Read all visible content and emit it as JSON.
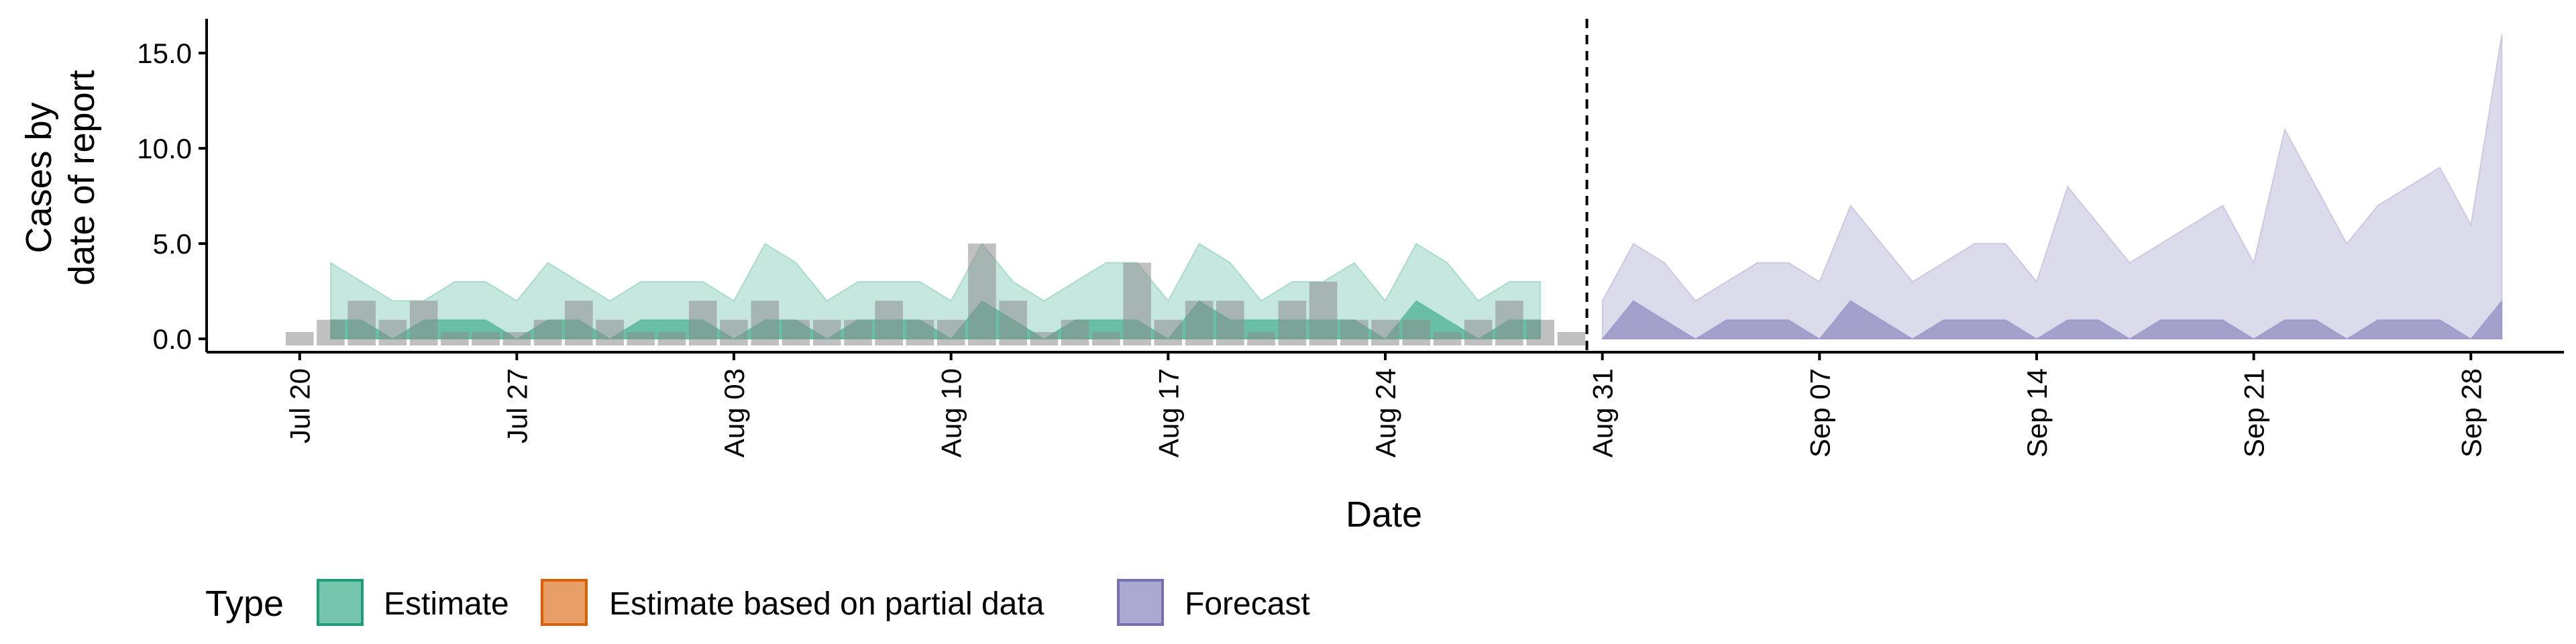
{
  "chart_data": {
    "type": "area",
    "xlabel": "Date",
    "ylabel_lines": [
      "Cases by",
      "date of report"
    ],
    "x_ticks": [
      "Jul 20",
      "Jul 27",
      "Aug 03",
      "Aug 10",
      "Aug 17",
      "Aug 24",
      "Aug 31",
      "Sep 07",
      "Sep 14",
      "Sep 21",
      "Sep 28"
    ],
    "y_ticks": [
      "0.0",
      "5.0",
      "10.0",
      "15.0"
    ],
    "ylim": [
      -0.7,
      16.8
    ],
    "xlim": [
      "2020-07-17",
      "2020-10-01"
    ],
    "forecast_date": "2020-08-30",
    "legend": {
      "title": "Type",
      "placement": "bottom",
      "items": [
        {
          "label": "Estimate",
          "fill": "#1b9e77",
          "stroke": "#1b9e77"
        },
        {
          "label": "Estimate based on partial data",
          "fill": "#d95f02",
          "stroke": "#d95f02"
        },
        {
          "label": "Forecast",
          "fill": "#7570b3",
          "stroke": "#7570b3"
        }
      ]
    },
    "colors": {
      "estimate": "#1b9e77",
      "forecast": "#7570b3",
      "reported_bars": "#8c8c8c"
    },
    "reported_cases": {
      "dates": [
        "2020-07-20",
        "2020-07-21",
        "2020-07-22",
        "2020-07-23",
        "2020-07-24",
        "2020-07-25",
        "2020-07-26",
        "2020-07-27",
        "2020-07-28",
        "2020-07-29",
        "2020-07-30",
        "2020-07-31",
        "2020-08-01",
        "2020-08-02",
        "2020-08-03",
        "2020-08-04",
        "2020-08-05",
        "2020-08-06",
        "2020-08-07",
        "2020-08-08",
        "2020-08-09",
        "2020-08-10",
        "2020-08-11",
        "2020-08-12",
        "2020-08-13",
        "2020-08-14",
        "2020-08-15",
        "2020-08-16",
        "2020-08-17",
        "2020-08-18",
        "2020-08-19",
        "2020-08-20",
        "2020-08-21",
        "2020-08-22",
        "2020-08-23",
        "2020-08-24",
        "2020-08-25",
        "2020-08-26",
        "2020-08-27",
        "2020-08-28",
        "2020-08-29",
        "2020-08-30"
      ],
      "values": [
        0,
        1,
        2,
        1,
        2,
        0,
        0,
        0,
        1,
        2,
        1,
        0,
        0,
        2,
        1,
        2,
        1,
        1,
        1,
        2,
        1,
        1,
        5,
        2,
        0,
        1,
        0,
        4,
        1,
        2,
        2,
        0,
        2,
        3,
        1,
        1,
        1,
        0,
        1,
        2,
        1,
        0
      ]
    },
    "estimate": {
      "dates": [
        "2020-07-21",
        "2020-07-22",
        "2020-07-23",
        "2020-07-24",
        "2020-07-25",
        "2020-07-26",
        "2020-07-27",
        "2020-07-28",
        "2020-07-29",
        "2020-07-30",
        "2020-07-31",
        "2020-08-01",
        "2020-08-02",
        "2020-08-03",
        "2020-08-04",
        "2020-08-05",
        "2020-08-06",
        "2020-08-07",
        "2020-08-08",
        "2020-08-09",
        "2020-08-10",
        "2020-08-11",
        "2020-08-12",
        "2020-08-13",
        "2020-08-14",
        "2020-08-15",
        "2020-08-16",
        "2020-08-17",
        "2020-08-18",
        "2020-08-19",
        "2020-08-20",
        "2020-08-21",
        "2020-08-22",
        "2020-08-23",
        "2020-08-24",
        "2020-08-25",
        "2020-08-26",
        "2020-08-27",
        "2020-08-28",
        "2020-08-29"
      ],
      "upper": [
        4,
        3,
        2,
        2,
        3,
        3,
        2,
        4,
        3,
        2,
        3,
        3,
        3,
        2,
        5,
        4,
        2,
        3,
        3,
        3,
        2,
        5,
        3,
        2,
        3,
        4,
        4,
        2,
        5,
        4,
        2,
        3,
        3,
        4,
        2,
        5,
        4,
        2,
        3,
        3
      ],
      "lower": [
        1,
        1,
        0,
        1,
        1,
        1,
        0,
        1,
        1,
        0,
        1,
        1,
        1,
        0,
        1,
        1,
        0,
        1,
        1,
        1,
        0,
        2,
        1,
        0,
        1,
        1,
        1,
        0,
        2,
        1,
        1,
        1,
        1,
        1,
        0,
        2,
        1,
        0,
        1,
        1
      ]
    },
    "forecast": {
      "dates": [
        "2020-08-31",
        "2020-09-01",
        "2020-09-02",
        "2020-09-03",
        "2020-09-04",
        "2020-09-05",
        "2020-09-06",
        "2020-09-07",
        "2020-09-08",
        "2020-09-09",
        "2020-09-10",
        "2020-09-11",
        "2020-09-12",
        "2020-09-13",
        "2020-09-14",
        "2020-09-15",
        "2020-09-16",
        "2020-09-17",
        "2020-09-18",
        "2020-09-19",
        "2020-09-20",
        "2020-09-21",
        "2020-09-22",
        "2020-09-23",
        "2020-09-24",
        "2020-09-25",
        "2020-09-26",
        "2020-09-27",
        "2020-09-28",
        "2020-09-29"
      ],
      "upper": [
        2,
        5,
        4,
        2,
        3,
        4,
        4,
        3,
        7,
        5,
        3,
        4,
        5,
        5,
        3,
        8,
        6,
        4,
        5,
        6,
        7,
        4,
        11,
        8,
        5,
        7,
        8,
        9,
        6,
        16
      ],
      "lower": [
        0,
        2,
        1,
        0,
        1,
        1,
        1,
        0,
        2,
        1,
        0,
        1,
        1,
        1,
        0,
        1,
        1,
        0,
        1,
        1,
        1,
        0,
        1,
        1,
        0,
        1,
        1,
        1,
        0,
        2
      ]
    }
  }
}
